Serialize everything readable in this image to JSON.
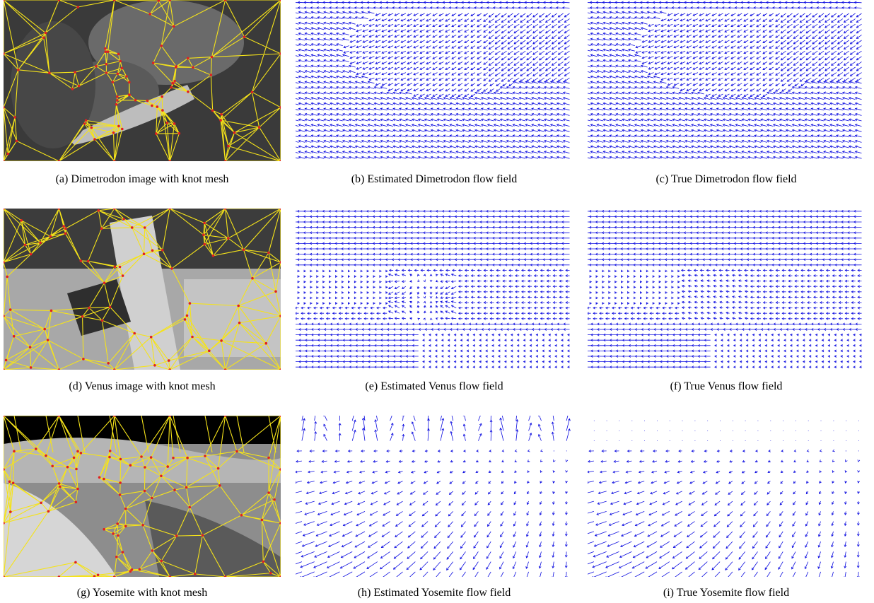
{
  "figure": {
    "rows": [
      {
        "panels": [
          {
            "type": "mesh",
            "scene": "dimetrodon",
            "caption": "(a)  Dimetrodon image with knot mesh"
          },
          {
            "type": "flow",
            "field": "dimetrodon",
            "caption": "(b)  Estimated Dimetrodon flow field"
          },
          {
            "type": "flow",
            "field": "dimetrodon",
            "caption": "(c)  True Dimetrodon flow field"
          }
        ]
      },
      {
        "panels": [
          {
            "type": "mesh",
            "scene": "venus",
            "caption": "(d)  Venus image with knot mesh"
          },
          {
            "type": "flow",
            "field": "venus_est",
            "caption": "(e)  Estimated Venus flow field"
          },
          {
            "type": "flow",
            "field": "venus_true",
            "caption": "(f)  True Venus flow field"
          }
        ]
      },
      {
        "panels": [
          {
            "type": "mesh",
            "scene": "yosemite",
            "caption": "(g)  Yosemite with knot mesh"
          },
          {
            "type": "flow",
            "field": "yosemite_est",
            "caption": "(h)  Estimated Yosemite flow field"
          },
          {
            "type": "flow",
            "field": "yosemite_true",
            "caption": "(i)  True Yosemite flow field"
          }
        ]
      }
    ],
    "colors": {
      "mesh_edges": "#f5e31a",
      "knots": "#e02020",
      "arrows": "#1010e0"
    }
  }
}
